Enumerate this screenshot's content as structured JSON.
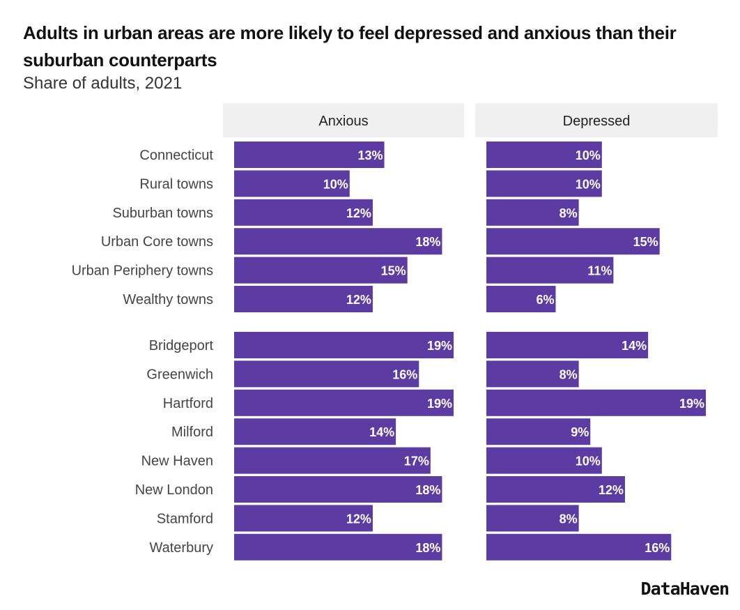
{
  "chart_data": {
    "type": "bar",
    "orientation": "horizontal",
    "title": "Adults in urban areas are more likely to feel depressed and anxious than their suburban counterparts",
    "subtitle": "Share of adults, 2021",
    "facets": [
      "Anxious",
      "Depressed"
    ],
    "groups": [
      [
        "Connecticut",
        "Rural towns",
        "Suburban towns",
        "Urban Core towns",
        "Urban Periphery towns",
        "Wealthy towns"
      ],
      [
        "Bridgeport",
        "Greenwich",
        "Hartford",
        "Milford",
        "New Haven",
        "New London",
        "Stamford",
        "Waterbury"
      ]
    ],
    "categories": [
      "Connecticut",
      "Rural towns",
      "Suburban towns",
      "Urban Core towns",
      "Urban Periphery towns",
      "Wealthy towns",
      "Bridgeport",
      "Greenwich",
      "Hartford",
      "Milford",
      "New Haven",
      "New London",
      "Stamford",
      "Waterbury"
    ],
    "series": [
      {
        "name": "Anxious",
        "values": [
          13,
          10,
          12,
          18,
          15,
          12,
          19,
          16,
          19,
          14,
          17,
          18,
          12,
          18
        ]
      },
      {
        "name": "Depressed",
        "values": [
          10,
          10,
          8,
          15,
          11,
          6,
          14,
          8,
          19,
          9,
          10,
          12,
          8,
          16
        ]
      }
    ],
    "value_format": "percent",
    "xlim": [
      0,
      19
    ],
    "grid": false,
    "bar_color": "#5c3ba3",
    "strip_color": "#f0f0f0"
  },
  "source_logo": "DataHaven"
}
